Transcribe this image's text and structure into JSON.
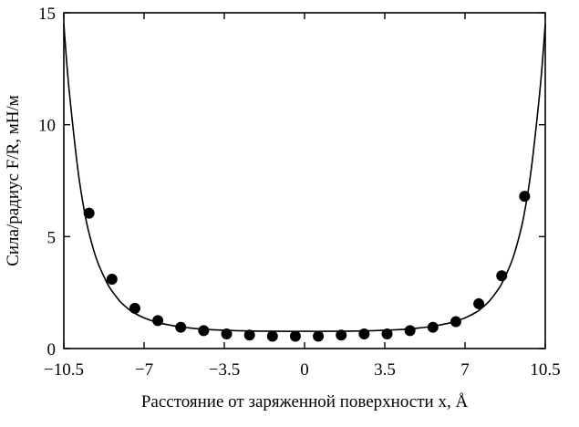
{
  "chart_data": {
    "type": "scatter",
    "title": "",
    "xlabel": "Расстояние от заряженной поверхности x, Å",
    "ylabel": "Сила/радиус F/R, мН/м",
    "xlim": [
      -10.5,
      10.5
    ],
    "ylim": [
      0,
      15
    ],
    "x_ticks": [
      -10.5,
      -7,
      -3.5,
      0,
      3.5,
      7,
      10.5
    ],
    "x_tick_labels": [
      "−10.5",
      "−7",
      "−3.5",
      "0",
      "3.5",
      "7",
      "10.5"
    ],
    "y_ticks": [
      0,
      5,
      10,
      15
    ],
    "y_tick_labels": [
      "0",
      "5",
      "10",
      "15"
    ],
    "grid": false,
    "legend": "none",
    "series": [
      {
        "kind": "points",
        "x": [
          -9.4,
          -8.4,
          -7.4,
          -6.4,
          -5.4,
          -4.4,
          -3.4,
          -2.4,
          -1.4,
          -0.4,
          0.6,
          1.6,
          2.6,
          3.6,
          4.6,
          5.6,
          6.6,
          7.6,
          8.6,
          9.6
        ],
        "y": [
          6.05,
          3.1,
          1.8,
          1.25,
          0.95,
          0.8,
          0.65,
          0.6,
          0.55,
          0.55,
          0.55,
          0.6,
          0.65,
          0.65,
          0.8,
          0.95,
          1.2,
          2.0,
          3.25,
          6.8
        ]
      },
      {
        "kind": "fit-line",
        "x": [
          -10.5,
          -10.3,
          -10.0,
          -9.8,
          -9.5,
          -9.2,
          -9.0,
          -8.7,
          -8.5,
          -8.2,
          -8.0,
          -7.7,
          -7.5,
          -7.0,
          -6.5,
          -6.0,
          -5.5,
          -5.0,
          -4.5,
          -4.0,
          -3.0,
          -2.0,
          -1.0,
          0.0,
          1.0,
          2.0,
          3.0,
          4.0,
          4.5,
          5.0,
          5.5,
          6.0,
          6.5,
          7.0,
          7.5,
          7.7,
          8.0,
          8.2,
          8.5,
          8.7,
          9.0,
          9.2,
          9.5,
          9.8,
          10.0,
          10.3,
          10.5
        ],
        "y": [
          14.5,
          11.9,
          8.95,
          7.35,
          5.6,
          4.4,
          3.8,
          3.1,
          2.72,
          2.3,
          2.05,
          1.78,
          1.63,
          1.37,
          1.19,
          1.07,
          0.98,
          0.92,
          0.87,
          0.84,
          0.8,
          0.78,
          0.77,
          0.77,
          0.77,
          0.78,
          0.8,
          0.84,
          0.87,
          0.92,
          0.98,
          1.07,
          1.19,
          1.37,
          1.63,
          1.78,
          2.05,
          2.3,
          2.72,
          3.1,
          3.8,
          4.4,
          5.6,
          7.35,
          8.95,
          11.9,
          14.5
        ]
      }
    ]
  }
}
